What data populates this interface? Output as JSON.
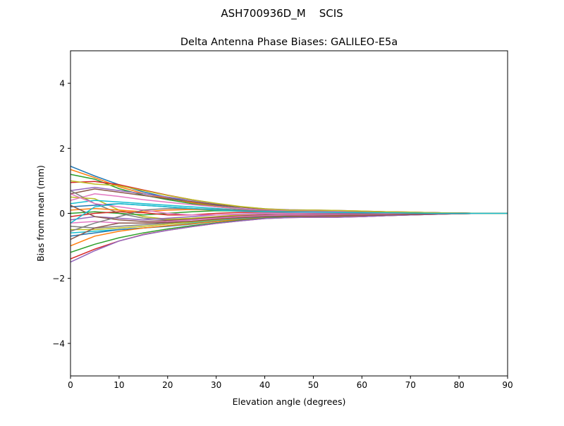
{
  "suptitle": "ASH700936D_M    SCIS",
  "chart_data": {
    "type": "line",
    "title": "Delta Antenna Phase Biases: GALILEO-E5a",
    "xlabel": "Elevation angle (degrees)",
    "ylabel": "Bias from mean (mm)",
    "xlim": [
      0,
      90
    ],
    "ylim": [
      -5,
      5
    ],
    "xticks": [
      0,
      10,
      20,
      30,
      40,
      50,
      60,
      70,
      80,
      90
    ],
    "yticks": [
      -4,
      -2,
      0,
      2,
      4
    ],
    "ytick_labels": [
      "−4",
      "−2",
      "0",
      "2",
      "4"
    ],
    "grid": false,
    "colors": [
      "#1f77b4",
      "#ff7f0e",
      "#2ca02c",
      "#d62728",
      "#9467bd",
      "#8c564b",
      "#e377c2",
      "#7f7f7f",
      "#bcbd22",
      "#17becf"
    ],
    "x": [
      0,
      5,
      10,
      15,
      20,
      25,
      30,
      35,
      40,
      45,
      50,
      55,
      60,
      65,
      70,
      75,
      80,
      85,
      90
    ],
    "series": [
      {
        "values": [
          1.45,
          1.15,
          0.88,
          0.66,
          0.49,
          0.35,
          0.24,
          0.15,
          0.1,
          0.09,
          0.08,
          0.07,
          0.05,
          0.04,
          0.03,
          0.02,
          0.01,
          0,
          0
        ]
      },
      {
        "values": [
          1.35,
          1.1,
          0.82,
          0.61,
          0.46,
          0.33,
          0.22,
          0.14,
          0.09,
          0.08,
          0.08,
          0.07,
          0.05,
          0.04,
          0.03,
          0.02,
          0.01,
          0,
          0
        ]
      },
      {
        "values": [
          1.2,
          1.05,
          0.76,
          0.56,
          0.42,
          0.3,
          0.2,
          0.13,
          0.09,
          0.08,
          0.08,
          0.06,
          0.05,
          0.04,
          0.03,
          0.02,
          0.01,
          0,
          0
        ]
      },
      {
        "values": [
          0.95,
          0.98,
          0.88,
          0.72,
          0.56,
          0.42,
          0.3,
          0.2,
          0.13,
          0.1,
          0.1,
          0.08,
          0.06,
          0.05,
          0.04,
          0.02,
          0.01,
          0,
          0
        ]
      },
      {
        "values": [
          0.7,
          0.8,
          0.7,
          0.6,
          0.5,
          0.4,
          0.3,
          0.2,
          0.14,
          0.11,
          0.1,
          0.09,
          0.07,
          0.05,
          0.04,
          0.02,
          0.01,
          0,
          0
        ]
      },
      {
        "values": [
          0.6,
          0.75,
          0.65,
          0.55,
          0.45,
          0.36,
          0.27,
          0.19,
          0.13,
          0.1,
          0.09,
          0.08,
          0.06,
          0.05,
          0.03,
          0.02,
          0.01,
          0,
          0
        ]
      },
      {
        "values": [
          0.4,
          0.6,
          0.52,
          0.42,
          0.34,
          0.27,
          0.2,
          0.14,
          0.1,
          0.08,
          0.07,
          0.06,
          0.05,
          0.04,
          0.03,
          0.02,
          0.01,
          0,
          0
        ]
      },
      {
        "values": [
          0.7,
          0.3,
          0.0,
          -0.15,
          -0.2,
          -0.18,
          -0.12,
          -0.06,
          -0.02,
          0.0,
          0.02,
          0.03,
          0.03,
          0.02,
          0.01,
          0.01,
          0,
          0,
          0
        ]
      },
      {
        "values": [
          0.5,
          0.45,
          0.1,
          -0.1,
          -0.18,
          -0.15,
          -0.1,
          -0.05,
          -0.01,
          0.01,
          0.03,
          0.04,
          0.03,
          0.02,
          0.01,
          0.01,
          0,
          0,
          0
        ]
      },
      {
        "values": [
          0.3,
          0.4,
          0.35,
          0.3,
          0.25,
          0.2,
          0.15,
          0.1,
          0.07,
          0.05,
          0.05,
          0.04,
          0.03,
          0.02,
          0.01,
          0.01,
          0,
          0,
          0
        ]
      },
      {
        "values": [
          0.2,
          0.25,
          0.3,
          0.25,
          0.2,
          0.15,
          0.1,
          0.08,
          0.06,
          0.05,
          0.04,
          0.04,
          0.03,
          0.02,
          0.01,
          0.01,
          0,
          0,
          0
        ]
      },
      {
        "values": [
          0.1,
          0.15,
          0.1,
          0.05,
          0.1,
          0.12,
          0.1,
          0.08,
          0.06,
          0.05,
          0.05,
          0.04,
          0.03,
          0.02,
          0.01,
          0.01,
          0,
          0,
          0
        ]
      },
      {
        "values": [
          0.0,
          0.05,
          0.0,
          -0.05,
          0.0,
          0.05,
          0.08,
          0.07,
          0.06,
          0.05,
          0.04,
          0.03,
          0.02,
          0.02,
          0.01,
          0,
          0,
          0,
          0
        ]
      },
      {
        "values": [
          -0.1,
          0.0,
          0.05,
          0.02,
          -0.05,
          -0.05,
          0.0,
          0.03,
          0.04,
          0.03,
          0.02,
          0.01,
          0.0,
          0.0,
          0.0,
          0,
          0,
          0,
          0
        ]
      },
      {
        "values": [
          -0.2,
          -0.1,
          -0.15,
          -0.2,
          -0.15,
          -0.1,
          -0.05,
          -0.02,
          0.0,
          0.0,
          0.0,
          0.0,
          -0.01,
          -0.01,
          0,
          0,
          0,
          0,
          0
        ]
      },
      {
        "values": [
          0.25,
          -0.1,
          -0.2,
          -0.25,
          -0.22,
          -0.18,
          -0.12,
          -0.08,
          -0.05,
          -0.04,
          -0.03,
          -0.03,
          -0.02,
          -0.02,
          -0.01,
          -0.01,
          0,
          0,
          0
        ]
      },
      {
        "values": [
          -0.3,
          -0.25,
          -0.3,
          -0.3,
          -0.25,
          -0.2,
          -0.15,
          -0.1,
          -0.07,
          -0.05,
          -0.05,
          -0.05,
          -0.04,
          -0.03,
          -0.02,
          -0.01,
          0,
          0,
          0
        ]
      },
      {
        "values": [
          -0.4,
          -0.45,
          -0.4,
          -0.35,
          -0.3,
          -0.25,
          -0.19,
          -0.14,
          -0.1,
          -0.08,
          -0.08,
          -0.07,
          -0.06,
          -0.05,
          -0.03,
          -0.02,
          -0.01,
          0,
          0
        ]
      },
      {
        "values": [
          -0.5,
          -0.5,
          -0.45,
          -0.4,
          -0.33,
          -0.27,
          -0.21,
          -0.16,
          -0.12,
          -0.1,
          -0.09,
          -0.08,
          -0.07,
          -0.05,
          -0.04,
          -0.02,
          -0.01,
          0,
          0
        ]
      },
      {
        "values": [
          -0.6,
          -0.55,
          -0.5,
          -0.45,
          -0.38,
          -0.3,
          -0.23,
          -0.17,
          -0.13,
          -0.11,
          -0.1,
          -0.09,
          -0.08,
          -0.06,
          -0.04,
          -0.02,
          -0.01,
          0,
          0
        ]
      },
      {
        "values": [
          -0.7,
          -0.6,
          -0.5,
          -0.45,
          -0.4,
          -0.33,
          -0.25,
          -0.18,
          -0.14,
          -0.12,
          -0.11,
          -0.1,
          -0.09,
          -0.06,
          -0.04,
          -0.02,
          -0.01,
          0,
          0
        ]
      },
      {
        "values": [
          -1.0,
          -0.7,
          -0.55,
          -0.45,
          -0.38,
          -0.32,
          -0.25,
          -0.19,
          -0.14,
          -0.12,
          -0.11,
          -0.1,
          -0.09,
          -0.06,
          -0.04,
          -0.02,
          -0.01,
          0,
          0
        ]
      },
      {
        "values": [
          -1.2,
          -0.95,
          -0.75,
          -0.6,
          -0.48,
          -0.38,
          -0.29,
          -0.21,
          -0.15,
          -0.12,
          -0.12,
          -0.11,
          -0.1,
          -0.07,
          -0.05,
          -0.03,
          -0.01,
          0,
          0
        ]
      },
      {
        "values": [
          -1.4,
          -1.1,
          -0.85,
          -0.65,
          -0.52,
          -0.41,
          -0.31,
          -0.23,
          -0.16,
          -0.13,
          -0.12,
          -0.12,
          -0.1,
          -0.07,
          -0.05,
          -0.03,
          -0.01,
          0,
          0
        ]
      },
      {
        "values": [
          -1.5,
          -1.15,
          -0.85,
          -0.66,
          -0.52,
          -0.41,
          -0.31,
          -0.23,
          -0.16,
          -0.13,
          -0.12,
          -0.12,
          -0.1,
          -0.07,
          -0.05,
          -0.03,
          -0.01,
          0,
          0
        ]
      },
      {
        "values": [
          -0.8,
          -0.45,
          -0.3,
          -0.3,
          -0.28,
          -0.24,
          -0.18,
          -0.13,
          -0.1,
          -0.08,
          -0.08,
          -0.07,
          -0.06,
          -0.05,
          -0.03,
          -0.02,
          -0.01,
          0,
          0
        ]
      },
      {
        "values": [
          0.6,
          0.3,
          0.2,
          0.1,
          0.0,
          -0.05,
          -0.05,
          -0.03,
          -0.01,
          0.0,
          0.01,
          0.02,
          0.02,
          0.01,
          0.01,
          0,
          0,
          0,
          0
        ]
      },
      {
        "values": [
          -0.55,
          -0.3,
          -0.1,
          0.1,
          0.15,
          0.15,
          0.12,
          0.1,
          0.08,
          0.06,
          0.05,
          0.04,
          0.03,
          0.02,
          0.01,
          0.01,
          0,
          0,
          0
        ]
      },
      {
        "values": [
          1.0,
          0.9,
          0.85,
          0.7,
          0.55,
          0.42,
          0.31,
          0.21,
          0.14,
          0.1,
          0.1,
          0.09,
          0.07,
          0.05,
          0.04,
          0.02,
          0.01,
          0,
          0
        ]
      },
      {
        "values": [
          -0.3,
          0.2,
          0.3,
          0.25,
          0.2,
          0.15,
          0.1,
          0.07,
          0.05,
          0.04,
          0.04,
          0.03,
          0.02,
          0.02,
          0.01,
          0,
          0,
          0,
          0
        ]
      }
    ]
  }
}
